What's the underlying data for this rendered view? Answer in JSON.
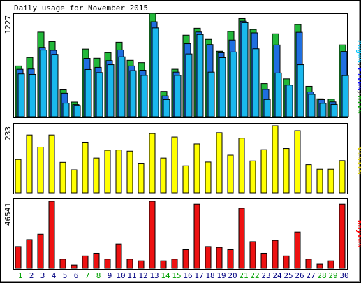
{
  "title": "Daily usage for November 2015",
  "colors": {
    "hits": "#00805c",
    "hits_fill": "#22b83a",
    "files": "#0000ff",
    "files_fill": "#1f6fe0",
    "pages": "#00ffff",
    "pages_fill": "#1ab8ee",
    "visits": "#ffff00",
    "visits_fill": "#ffff00",
    "kbytes": "#ff0000",
    "kbytes_fill": "#ee1111",
    "weekend": "#00a000",
    "weekday": "#000080"
  },
  "chart_data": [
    {
      "type": "bar",
      "panel": "hits-files-pages",
      "title": "Daily usage for November 2015",
      "legend": [
        "Pages",
        "Files",
        "Hits"
      ],
      "ylabel": "1227",
      "ylim": [
        0,
        1227
      ],
      "categories": [
        "1",
        "2",
        "3",
        "4",
        "5",
        "6",
        "7",
        "8",
        "9",
        "10",
        "11",
        "12",
        "13",
        "14",
        "15",
        "16",
        "17",
        "18",
        "19",
        "20",
        "21",
        "22",
        "23",
        "24",
        "25",
        "26",
        "27",
        "28",
        "29",
        "30"
      ],
      "weekend_days": [
        "1",
        "7",
        "8",
        "14",
        "15",
        "21",
        "22",
        "28",
        "29"
      ],
      "series": [
        {
          "name": "Hits",
          "values": [
            602,
            703,
            1004,
            892,
            319,
            174,
            803,
            694,
            760,
            884,
            669,
            641,
            1227,
            301,
            563,
            968,
            1050,
            918,
            777,
            1012,
            1165,
            1035,
            393,
            984,
            449,
            1094,
            361,
            213,
            209,
            852
          ]
        },
        {
          "name": "Files",
          "values": [
            562,
            566,
            823,
            788,
            279,
            144,
            692,
            585,
            665,
            792,
            602,
            551,
            1127,
            247,
            529,
            866,
            1005,
            856,
            759,
            910,
            1134,
            995,
            324,
            851,
            376,
            1002,
            294,
            203,
            176,
            774
          ]
        },
        {
          "name": "Pages",
          "values": [
            508,
            502,
            791,
            740,
            161,
            134,
            560,
            523,
            617,
            711,
            546,
            490,
            1054,
            204,
            490,
            745,
            976,
            529,
            701,
            768,
            1116,
            806,
            205,
            519,
            375,
            617,
            266,
            159,
            146,
            488
          ]
        }
      ]
    },
    {
      "type": "bar",
      "panel": "visits",
      "legend": [
        "Visits"
      ],
      "ylabel": "233",
      "ylim": [
        0,
        233
      ],
      "categories": [
        "1",
        "2",
        "3",
        "4",
        "5",
        "6",
        "7",
        "8",
        "9",
        "10",
        "11",
        "12",
        "13",
        "14",
        "15",
        "16",
        "17",
        "18",
        "19",
        "20",
        "21",
        "22",
        "23",
        "24",
        "25",
        "26",
        "27",
        "28",
        "29",
        "30"
      ],
      "series": [
        {
          "name": "Visits",
          "values": [
            116,
            201,
            159,
            201,
            106,
            80,
            176,
            121,
            148,
            149,
            145,
            103,
            206,
            121,
            194,
            94,
            170,
            107,
            209,
            131,
            190,
            111,
            150,
            233,
            154,
            216,
            98,
            82,
            82,
            112
          ]
        }
      ]
    },
    {
      "type": "bar",
      "panel": "kbytes",
      "legend": [
        "KBytes"
      ],
      "ylabel": "46541",
      "ylim": [
        0,
        46541
      ],
      "categories": [
        "1",
        "2",
        "3",
        "4",
        "5",
        "6",
        "7",
        "8",
        "9",
        "10",
        "11",
        "12",
        "13",
        "14",
        "15",
        "16",
        "17",
        "18",
        "19",
        "20",
        "21",
        "22",
        "23",
        "24",
        "25",
        "26",
        "27",
        "28",
        "29",
        "30"
      ],
      "series": [
        {
          "name": "KBytes",
          "values": [
            15070,
            19897,
            23623,
            46541,
            6387,
            2360,
            8571,
            10431,
            6387,
            16891,
            6387,
            5236,
            46541,
            5236,
            6387,
            12853,
            44500,
            15070,
            14469,
            12853,
            41693,
            18446,
            10431,
            19304,
            8571,
            25128,
            6387,
            2874,
            5236,
            44500
          ]
        }
      ]
    }
  ]
}
